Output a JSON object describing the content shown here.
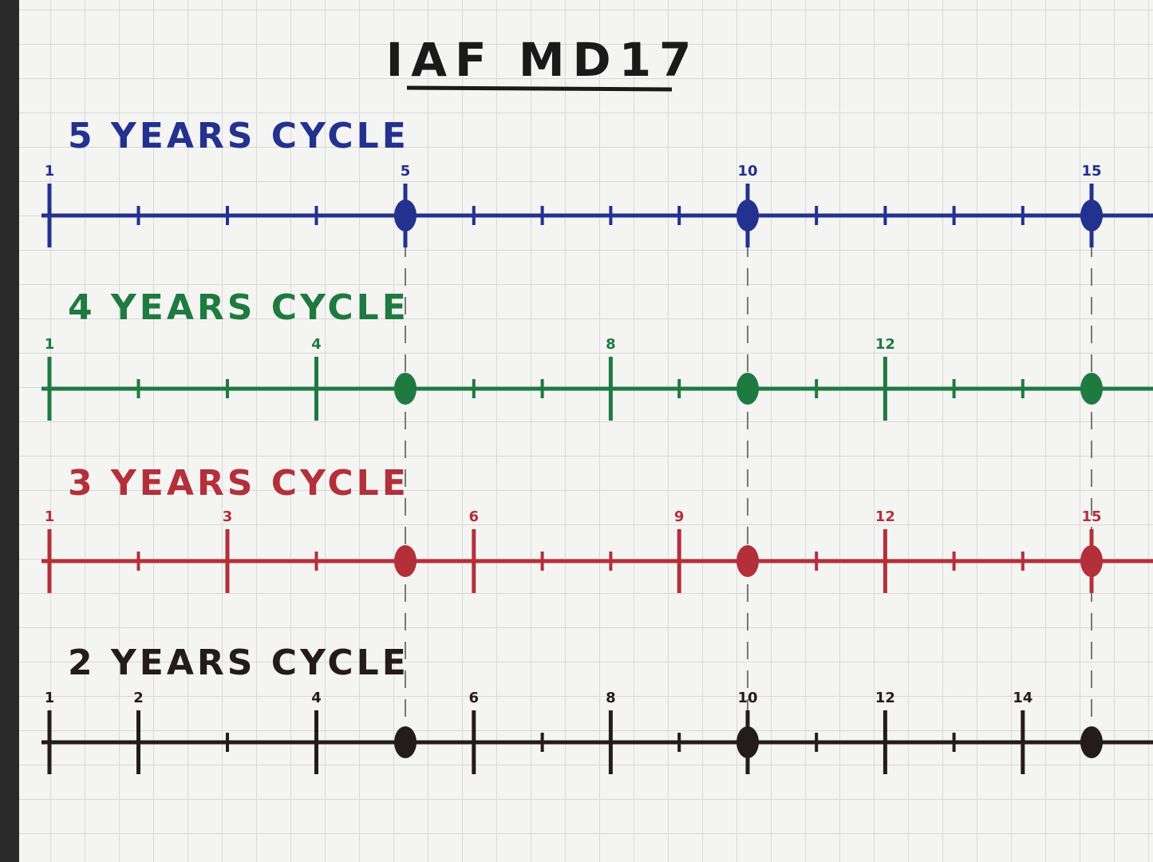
{
  "title": "IAF MD17",
  "timelines": [
    {
      "label": "5 YEARS CYCLE",
      "color": "#23318f",
      "labels": [
        1,
        5,
        10,
        15
      ],
      "dots": [
        5,
        10,
        15
      ]
    },
    {
      "label": "4 YEARS CYCLE",
      "color": "#1f7a40",
      "labels": [
        1,
        4,
        8,
        12
      ],
      "dots": [
        5,
        10,
        15
      ]
    },
    {
      "label": "3 YEARS CYCLE",
      "color": "#b3303b",
      "labels": [
        1,
        3,
        6,
        9,
        12,
        15
      ],
      "dots": [
        5,
        10,
        15
      ]
    },
    {
      "label": "2 YEARS CYCLE",
      "color": "#241c1c",
      "labels": [
        1,
        2,
        4,
        6,
        8,
        10,
        12,
        14
      ],
      "dots": [
        5,
        10,
        15
      ]
    }
  ]
}
